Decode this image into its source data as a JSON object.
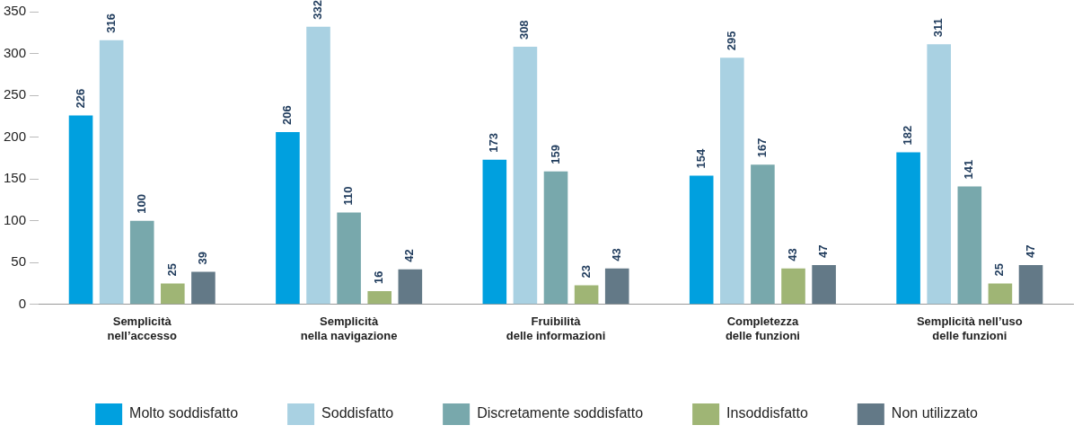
{
  "chart_data": {
    "type": "bar",
    "categories": [
      "Semplicità\nnell’accesso",
      "Semplicità\nnella navigazione",
      "Fruibilità\ndelle informazioni",
      "Completezza\ndelle funzioni",
      "Semplicità nell’uso\ndelle funzioni"
    ],
    "series": [
      {
        "name": "Molto soddisfatto",
        "color": "#00a0df",
        "values": [
          226,
          206,
          173,
          154,
          182
        ]
      },
      {
        "name": "Soddisfatto",
        "color": "#a9d1e2",
        "values": [
          316,
          332,
          308,
          295,
          311
        ]
      },
      {
        "name": "Discretamente soddisfatto",
        "color": "#78a8ac",
        "values": [
          100,
          110,
          159,
          167,
          141
        ]
      },
      {
        "name": "Insoddisfatto",
        "color": "#9fb575",
        "values": [
          25,
          16,
          23,
          43,
          25
        ]
      },
      {
        "name": "Non utilizzato",
        "color": "#637987",
        "values": [
          39,
          42,
          43,
          47,
          47
        ]
      }
    ],
    "ylim": [
      0,
      350
    ],
    "yticks": [
      0,
      50,
      100,
      150,
      200,
      250,
      300,
      350
    ],
    "grid": false,
    "legend": "bottom",
    "data_labels": true
  }
}
